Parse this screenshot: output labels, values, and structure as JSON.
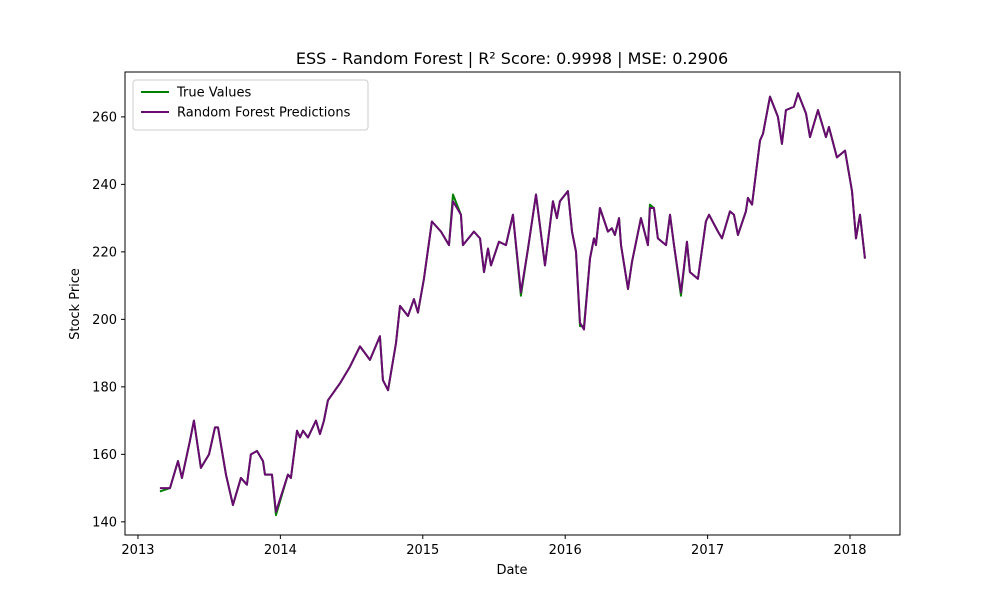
{
  "chart_data": {
    "type": "line",
    "title": "ESS - Random Forest | R² Score: 0.9998 | MSE: 0.2906",
    "xlabel": "Date",
    "ylabel": "Stock Price",
    "x": [
      2013.154,
      2013.225,
      2013.281,
      2013.309,
      2013.365,
      2013.393,
      2013.442,
      2013.499,
      2013.541,
      2013.562,
      2013.618,
      2013.667,
      2013.723,
      2013.765,
      2013.793,
      2013.836,
      2013.878,
      2013.892,
      2013.941,
      2013.969,
      2014.053,
      2014.074,
      2014.117,
      2014.138,
      2014.159,
      2014.194,
      2014.25,
      2014.278,
      2014.306,
      2014.334,
      2014.418,
      2014.489,
      2014.559,
      2014.629,
      2014.699,
      2014.72,
      2014.756,
      2014.812,
      2014.84,
      2014.896,
      2014.938,
      2014.966,
      2015.008,
      2015.064,
      2015.128,
      2015.184,
      2015.212,
      2015.268,
      2015.282,
      2015.359,
      2015.402,
      2015.43,
      2015.458,
      2015.479,
      2015.535,
      2015.584,
      2015.633,
      2015.689,
      2015.739,
      2015.795,
      2015.858,
      2015.914,
      2015.942,
      2015.963,
      2016.019,
      2016.048,
      2016.076,
      2016.104,
      2016.132,
      2016.174,
      2016.202,
      2016.216,
      2016.244,
      2016.3,
      2016.328,
      2016.349,
      2016.378,
      2016.392,
      2016.441,
      2016.469,
      2016.532,
      2016.581,
      2016.595,
      2016.623,
      2016.651,
      2016.708,
      2016.736,
      2016.764,
      2016.813,
      2016.855,
      2016.876,
      2016.932,
      2016.988,
      2017.01,
      2017.073,
      2017.101,
      2017.157,
      2017.185,
      2017.213,
      2017.269,
      2017.283,
      2017.312,
      2017.368,
      2017.389,
      2017.438,
      2017.494,
      2017.522,
      2017.55,
      2017.606,
      2017.635,
      2017.691,
      2017.719,
      2017.747,
      2017.775,
      2017.831,
      2017.852,
      2017.908,
      2017.965,
      2018.014,
      2018.042,
      2018.07,
      2018.105
    ],
    "series": [
      {
        "name": "True Values",
        "color": "#008000",
        "values": [
          149,
          150,
          158,
          153,
          164,
          170,
          156,
          160,
          168,
          168,
          154,
          145,
          153,
          151,
          160,
          161,
          158,
          154,
          154,
          142,
          154,
          153,
          167,
          165,
          167,
          165,
          170,
          166,
          170,
          176,
          181,
          186,
          192,
          188,
          195,
          182,
          179,
          193,
          204,
          201,
          206,
          202,
          212,
          229,
          226,
          222,
          237,
          231,
          222,
          226,
          224,
          214,
          221,
          216,
          223,
          222,
          231,
          207,
          221,
          237,
          216,
          235,
          230,
          235,
          238,
          226,
          220,
          198,
          198,
          218,
          224,
          222,
          233,
          226,
          227,
          225,
          230,
          222,
          209,
          217,
          230,
          222,
          234,
          233,
          224,
          222,
          231,
          222,
          207,
          223,
          214,
          212,
          229,
          231,
          226,
          224,
          232,
          231,
          225,
          232,
          236,
          234,
          253,
          255,
          266,
          260,
          252,
          262,
          263,
          267,
          261,
          254,
          258,
          262,
          254,
          257,
          248,
          250,
          238,
          224,
          231,
          218
        ]
      },
      {
        "name": "Random Forest Predictions",
        "color": "#6a0a72",
        "values": [
          150,
          150,
          158,
          153,
          164,
          170,
          156,
          160,
          168,
          168,
          154,
          145,
          153,
          151,
          160,
          161,
          158,
          154,
          154,
          143,
          154,
          153,
          167,
          165,
          167,
          165,
          170,
          166,
          170,
          176,
          181,
          186,
          192,
          188,
          195,
          182,
          179,
          193,
          204,
          201,
          206,
          202,
          212,
          229,
          226,
          222,
          235,
          231,
          222,
          226,
          224,
          214,
          221,
          216,
          223,
          222,
          231,
          208,
          221,
          237,
          216,
          235,
          230,
          235,
          238,
          226,
          220,
          199,
          197,
          218,
          224,
          222,
          233,
          226,
          227,
          225,
          230,
          222,
          209,
          217,
          230,
          222,
          233,
          233,
          224,
          222,
          231,
          222,
          208,
          223,
          214,
          212,
          229,
          231,
          226,
          224,
          232,
          231,
          225,
          232,
          236,
          234,
          253,
          255,
          266,
          260,
          252,
          262,
          263,
          267,
          261,
          254,
          258,
          262,
          254,
          257,
          248,
          250,
          238,
          224,
          231,
          218
        ]
      }
    ],
    "xlim": [
      2012.909,
      2018.351
    ],
    "xticks": [
      2013,
      2014,
      2015,
      2016,
      2017,
      2018
    ],
    "ylim": [
      136.1,
      273.3
    ],
    "yticks": [
      140,
      160,
      180,
      200,
      220,
      240,
      260
    ],
    "legend": "upper left"
  }
}
